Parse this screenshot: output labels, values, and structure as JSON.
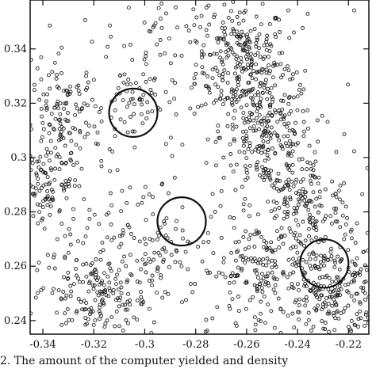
{
  "chart_data": {
    "type": "scatter",
    "xlim": [
      -0.345,
      -0.212
    ],
    "ylim": [
      0.235,
      0.358
    ],
    "x_ticks": [
      -0.34,
      -0.32,
      -0.3,
      -0.28,
      -0.26,
      -0.24,
      -0.22
    ],
    "x_tick_labels": [
      "-0.34",
      "-0.32",
      "-0.3",
      "-0.28",
      "-0.26",
      "-0.24",
      "-0.22"
    ],
    "y_ticks": [
      0.24,
      0.26,
      0.28,
      0.3,
      0.32,
      0.34
    ],
    "y_tick_labels": [
      "0.24",
      "0.26",
      "0.28",
      "0.3",
      "0.32",
      "0.34"
    ],
    "grid": false,
    "marker": "open-circle",
    "marker_color": "#222222",
    "circle_color": "#111111",
    "clusters": [
      {
        "cx": -0.262,
        "cy": 0.335,
        "sx": 0.009,
        "sy": 0.011,
        "n": 260
      },
      {
        "cx": -0.252,
        "cy": 0.308,
        "sx": 0.009,
        "sy": 0.011,
        "n": 230
      },
      {
        "cx": -0.238,
        "cy": 0.282,
        "sx": 0.01,
        "sy": 0.01,
        "n": 180
      },
      {
        "cx": -0.228,
        "cy": 0.252,
        "sx": 0.011,
        "sy": 0.01,
        "n": 260
      },
      {
        "cx": -0.258,
        "cy": 0.258,
        "sx": 0.01,
        "sy": 0.009,
        "n": 130
      },
      {
        "cx": -0.331,
        "cy": 0.314,
        "sx": 0.007,
        "sy": 0.011,
        "n": 130
      },
      {
        "cx": -0.338,
        "cy": 0.288,
        "sx": 0.006,
        "sy": 0.01,
        "n": 100
      },
      {
        "cx": -0.318,
        "cy": 0.25,
        "sx": 0.011,
        "sy": 0.008,
        "n": 170
      },
      {
        "cx": -0.305,
        "cy": 0.32,
        "sx": 0.008,
        "sy": 0.007,
        "n": 60
      },
      {
        "cx": -0.292,
        "cy": 0.345,
        "sx": 0.012,
        "sy": 0.008,
        "n": 50
      },
      {
        "cx": -0.3,
        "cy": 0.27,
        "sx": 0.012,
        "sy": 0.012,
        "n": 90
      }
    ],
    "uniform_points": 140,
    "circles": [
      {
        "cx": -0.3045,
        "cy": 0.3165,
        "r": 0.0095
      },
      {
        "cx": -0.2855,
        "cy": 0.2765,
        "r": 0.0095
      },
      {
        "cx": -0.2295,
        "cy": 0.261,
        "r": 0.0095
      }
    ]
  },
  "caption": "2.  The amount of the computer yielded and density"
}
